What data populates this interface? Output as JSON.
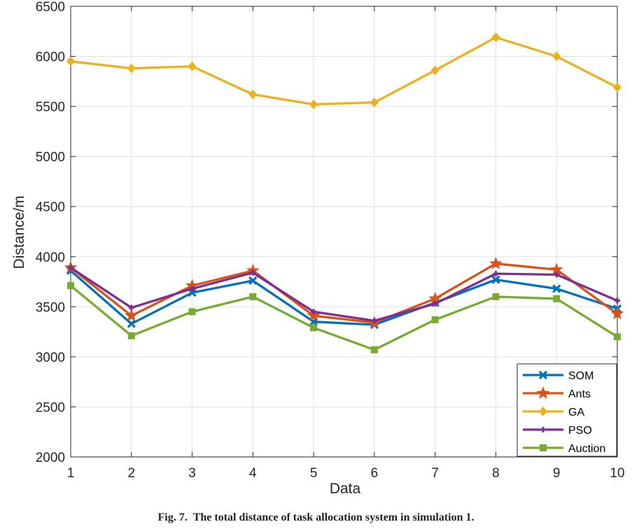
{
  "chart_data": {
    "type": "line",
    "title": "",
    "xlabel": "Data",
    "ylabel": "Distance/m",
    "x": [
      1,
      2,
      3,
      4,
      5,
      6,
      7,
      8,
      9,
      10
    ],
    "xlim": [
      1,
      10
    ],
    "ylim": [
      2000,
      6500
    ],
    "xticks": [
      1,
      2,
      3,
      4,
      5,
      6,
      7,
      8,
      9,
      10
    ],
    "yticks": [
      2000,
      2500,
      3000,
      3500,
      4000,
      4500,
      5000,
      5500,
      6000,
      6500
    ],
    "grid": true,
    "legend_position": "bottom-right",
    "series": [
      {
        "name": "SOM",
        "color": "#0072BD",
        "marker": "x",
        "values": [
          3860,
          3330,
          3640,
          3760,
          3350,
          3320,
          3540,
          3770,
          3680,
          3480
        ]
      },
      {
        "name": "Ants",
        "color": "#D95319",
        "marker": "star",
        "values": [
          3890,
          3410,
          3710,
          3860,
          3410,
          3340,
          3580,
          3930,
          3870,
          3430
        ]
      },
      {
        "name": "GA",
        "color": "#EDB120",
        "marker": "diamond",
        "values": [
          5950,
          5880,
          5900,
          5620,
          5520,
          5540,
          5860,
          6190,
          6000,
          5690
        ]
      },
      {
        "name": "PSO",
        "color": "#7E2F8E",
        "marker": "plus",
        "values": [
          3890,
          3490,
          3680,
          3840,
          3450,
          3360,
          3530,
          3830,
          3820,
          3560
        ]
      },
      {
        "name": "Auction",
        "color": "#77AC30",
        "marker": "square",
        "values": [
          3710,
          3210,
          3450,
          3600,
          3290,
          3070,
          3370,
          3600,
          3580,
          3200
        ]
      }
    ]
  },
  "caption": {
    "label": "Fig. 7.",
    "text": "The total distance of task allocation system in simulation 1."
  }
}
